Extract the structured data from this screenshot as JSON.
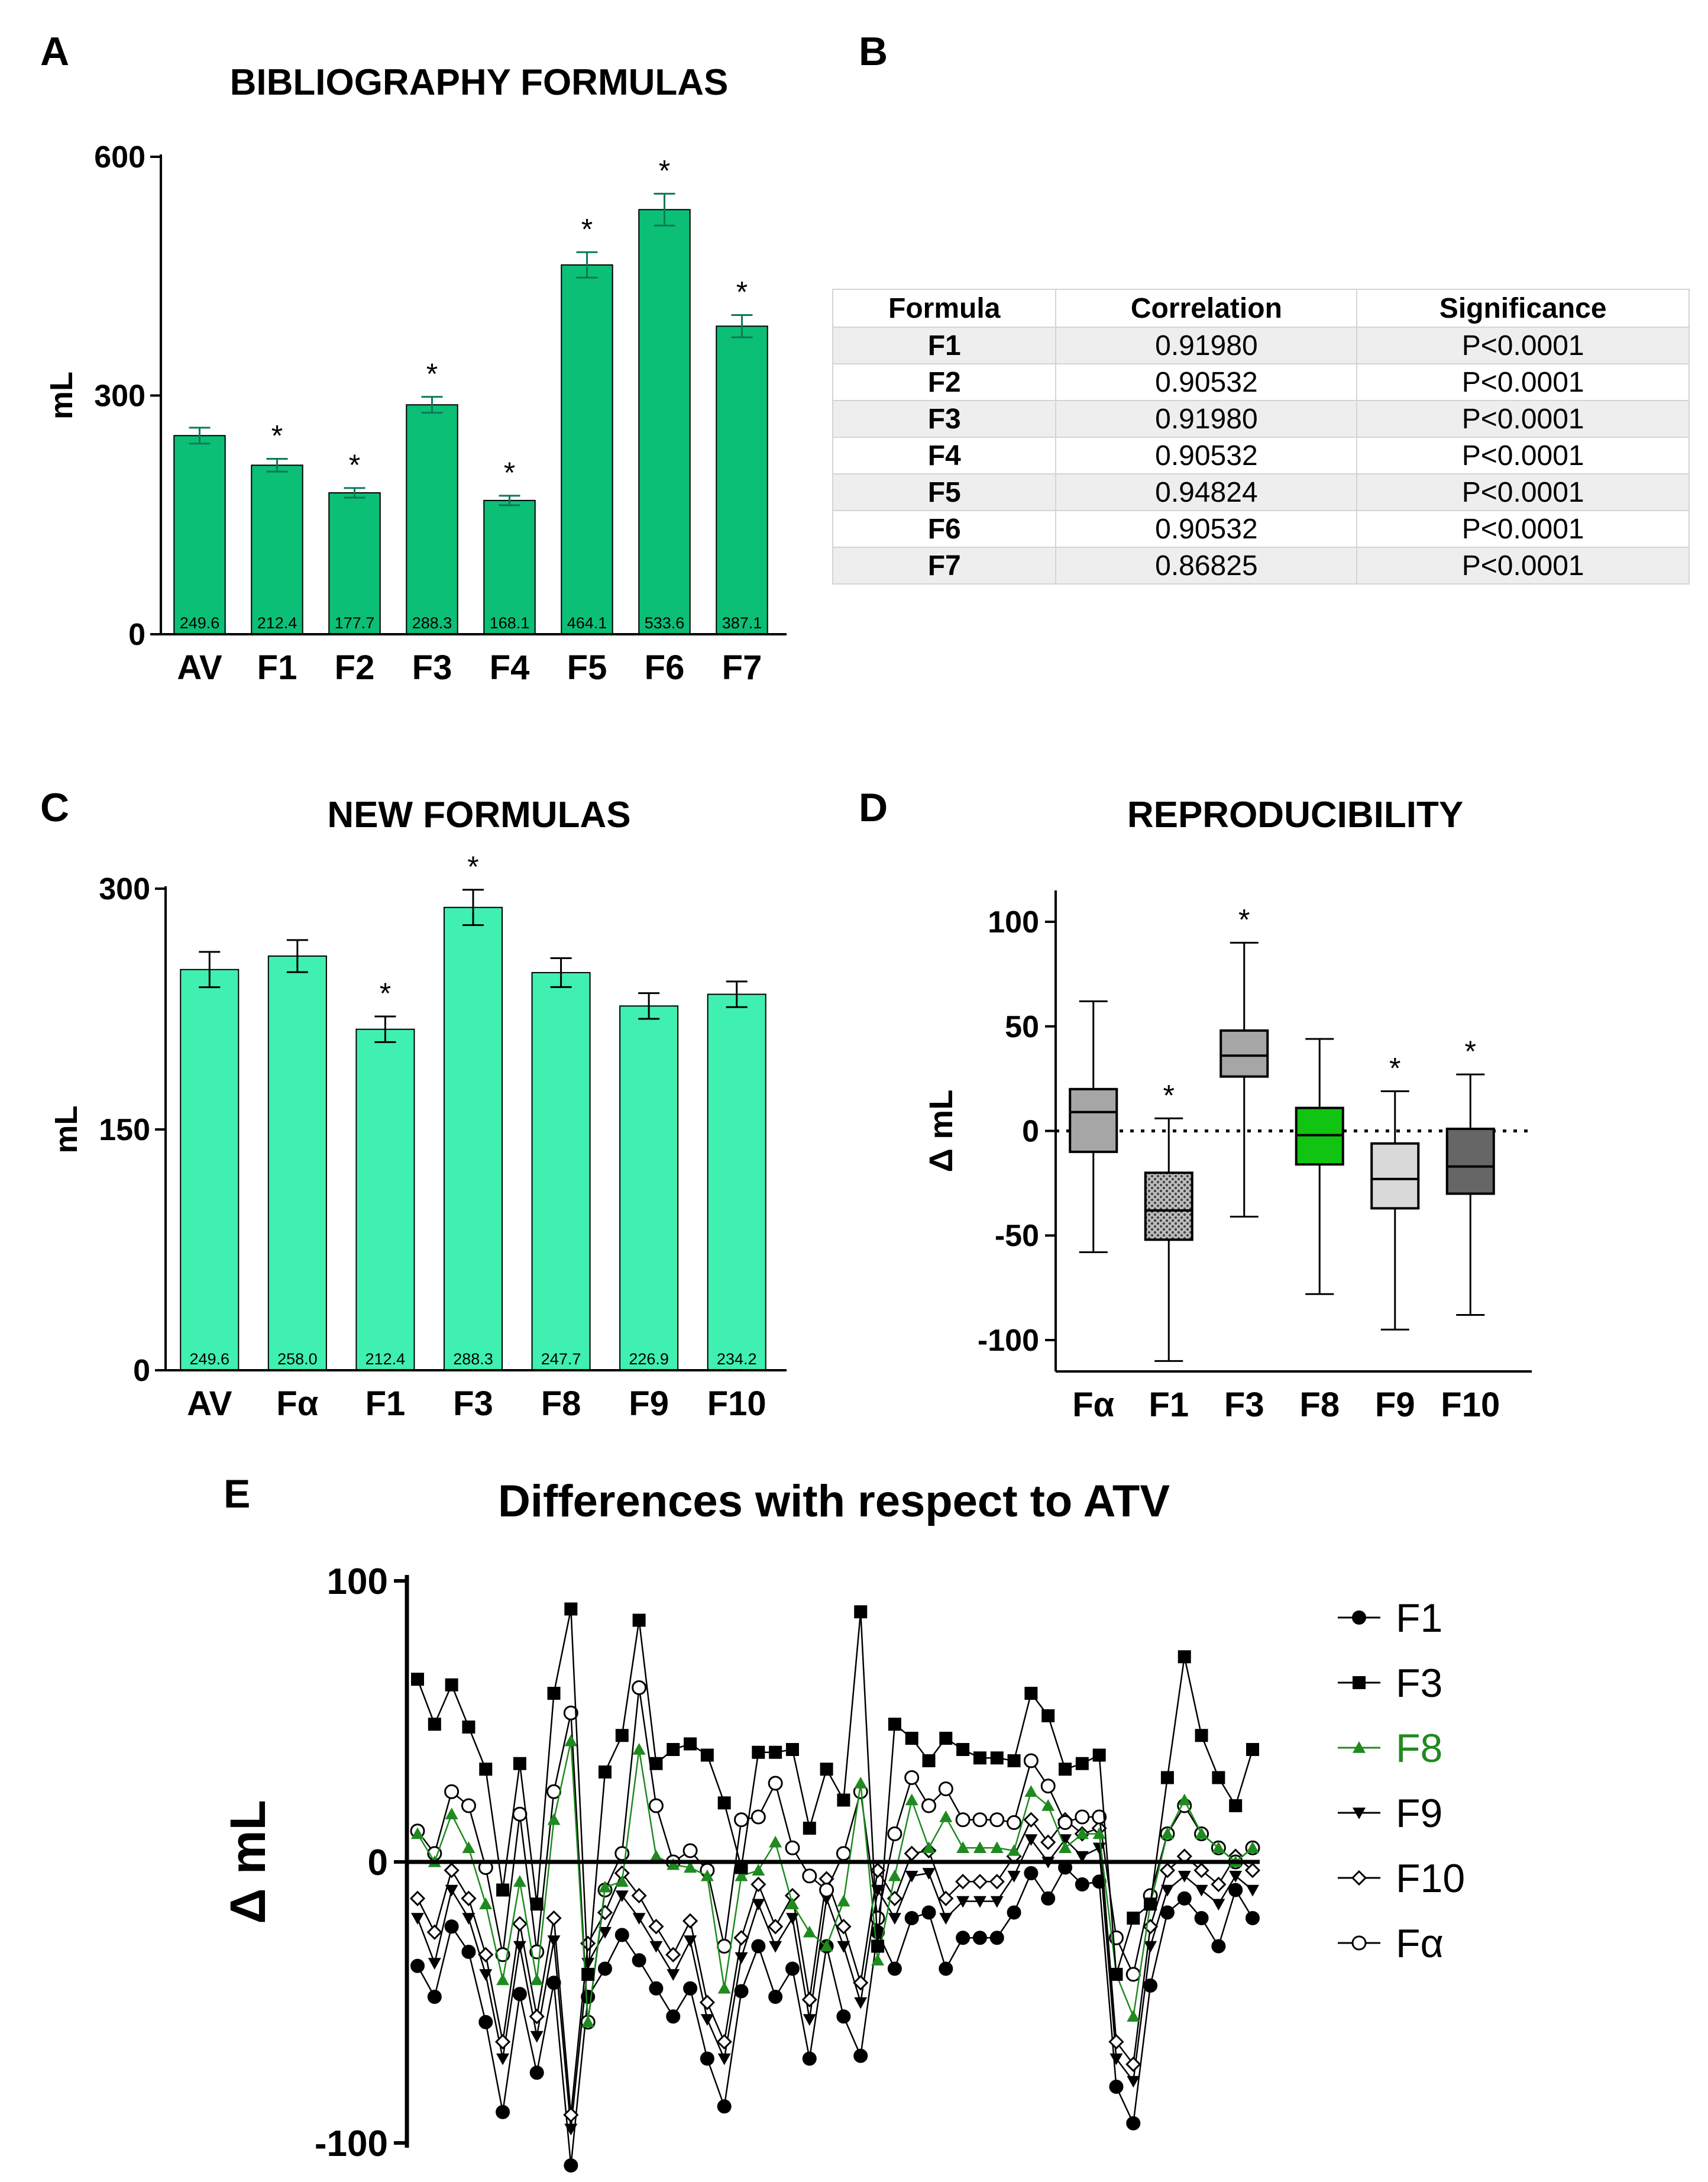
{
  "panels": {
    "A": {
      "letter": "A",
      "title": "BIBLIOGRAPHY FORMULAS"
    },
    "B": {
      "letter": "B"
    },
    "C": {
      "letter": "C",
      "title": "NEW FORMULAS"
    },
    "D": {
      "letter": "D",
      "title": "REPRODUCIBILITY"
    },
    "E": {
      "letter": "E",
      "title": "Differences with respect to ATV"
    }
  },
  "colors": {
    "bar_a": "#0cbf76",
    "bar_c": "#3ff0b0",
    "err_a": "#0a7a55",
    "f8_green": "#1f8a1f"
  },
  "correlation_table": {
    "headers": [
      "Formula",
      "Correlation",
      "Significance"
    ],
    "rows": [
      [
        "F1",
        "0.91980",
        "P<0.0001"
      ],
      [
        "F2",
        "0.90532",
        "P<0.0001"
      ],
      [
        "F3",
        "0.91980",
        "P<0.0001"
      ],
      [
        "F4",
        "0.90532",
        "P<0.0001"
      ],
      [
        "F5",
        "0.94824",
        "P<0.0001"
      ],
      [
        "F6",
        "0.90532",
        "P<0.0001"
      ],
      [
        "F7",
        "0.86825",
        "P<0.0001"
      ]
    ]
  },
  "chart_data": [
    {
      "id": "A",
      "type": "bar",
      "title": "BIBLIOGRAPHY FORMULAS",
      "ylabel": "mL",
      "xlabel": "",
      "ylim": [
        0,
        600
      ],
      "yticks": [
        0,
        300,
        600
      ],
      "categories": [
        "AV",
        "F1",
        "F2",
        "F3",
        "F4",
        "F5",
        "F6",
        "F7"
      ],
      "values": [
        249.6,
        212.4,
        177.7,
        288.3,
        168.1,
        464.1,
        533.6,
        387.1
      ],
      "value_labels": [
        "249.6",
        "212.4",
        "177.7",
        "288.3",
        "168.1",
        "464.1",
        "533.6",
        "387.1"
      ],
      "errors": [
        10,
        8,
        6,
        10,
        6,
        16,
        20,
        14
      ],
      "significant": [
        false,
        true,
        true,
        true,
        true,
        true,
        true,
        true
      ],
      "significance_marker": "*"
    },
    {
      "id": "C",
      "type": "bar",
      "title": "NEW FORMULAS",
      "ylabel": "mL",
      "xlabel": "",
      "ylim": [
        0,
        300
      ],
      "yticks": [
        0,
        150,
        300
      ],
      "categories": [
        "AV",
        "Fα",
        "F1",
        "F3",
        "F8",
        "F9",
        "F10"
      ],
      "values": [
        249.6,
        258.0,
        212.4,
        288.3,
        247.7,
        226.9,
        234.2
      ],
      "value_labels": [
        "249.6",
        "258.0",
        "212.4",
        "288.3",
        "247.7",
        "226.9",
        "234.2"
      ],
      "errors": [
        11,
        10,
        8,
        11,
        9,
        8,
        8
      ],
      "significant": [
        false,
        false,
        true,
        true,
        false,
        false,
        false
      ],
      "significance_marker": "*"
    },
    {
      "id": "D",
      "type": "box",
      "title": "REPRODUCIBILITY",
      "ylabel": "Δ mL",
      "ylim": [
        -115,
        115
      ],
      "yticks": [
        -100,
        -50,
        0,
        50,
        100
      ],
      "reference_line": 0,
      "categories": [
        "Fα",
        "F1",
        "F3",
        "F8",
        "F9",
        "F10"
      ],
      "boxes": [
        {
          "min": -58,
          "q1": -10,
          "median": 9,
          "q3": 20,
          "max": 62,
          "fill": "#a6a6a6",
          "significant": false
        },
        {
          "min": -110,
          "q1": -52,
          "median": -38,
          "q3": -20,
          "max": 6,
          "fill": "#b4b4b4",
          "pattern": "dots",
          "significant": true
        },
        {
          "min": -41,
          "q1": 26,
          "median": 36,
          "q3": 48,
          "max": 90,
          "fill": "#a6a6a6",
          "significant": true
        },
        {
          "min": -78,
          "q1": -16,
          "median": -2,
          "q3": 11,
          "max": 44,
          "fill": "#11c411",
          "significant": false
        },
        {
          "min": -95,
          "q1": -37,
          "median": -23,
          "q3": -6,
          "max": 19,
          "fill": "#d9d9d9",
          "significant": true
        },
        {
          "min": -88,
          "q1": -30,
          "median": -17,
          "q3": 1,
          "max": 27,
          "fill": "#666666",
          "significant": true
        }
      ],
      "significance_marker": "*"
    },
    {
      "id": "E",
      "type": "line",
      "title": "Differences with respect to ATV",
      "ylabel": "Δ mL",
      "ylim": [
        -100,
        100
      ],
      "yticks": [
        -100,
        0,
        100
      ],
      "x": [
        1,
        2,
        3,
        4,
        5,
        6,
        7,
        8,
        9,
        10,
        11,
        12,
        13,
        14,
        15,
        16,
        17,
        18,
        19,
        20,
        21,
        22,
        23,
        24,
        25,
        26,
        27,
        28,
        29,
        30,
        31,
        32,
        33,
        34,
        35,
        36,
        37,
        38,
        39,
        40,
        41,
        42,
        43,
        44,
        45,
        46,
        47,
        48,
        49,
        50
      ],
      "series": [
        {
          "name": "F1",
          "marker": "filled-circle",
          "color": "#000000",
          "values": [
            -37,
            -48,
            -23,
            -32,
            -57,
            -89,
            -47,
            -75,
            -43,
            -108,
            -48,
            -38,
            -26,
            -35,
            -45,
            -55,
            -45,
            -70,
            -87,
            -46,
            -30,
            -48,
            -38,
            -70,
            -30,
            -55,
            -69,
            -25,
            -38,
            -20,
            -18,
            -38,
            -27,
            -27,
            -27,
            -18,
            -4,
            -13,
            -2,
            -8,
            -7,
            -80,
            -93,
            -44,
            -18,
            -13,
            -20,
            -30,
            -10,
            -20
          ]
        },
        {
          "name": "F3",
          "marker": "filled-square",
          "color": "#000000",
          "values": [
            65,
            49,
            63,
            48,
            33,
            -10,
            35,
            -15,
            60,
            90,
            -40,
            32,
            45,
            86,
            35,
            40,
            42,
            38,
            21,
            -2,
            39,
            39,
            40,
            12,
            33,
            22,
            89,
            -30,
            49,
            44,
            36,
            44,
            40,
            37,
            37,
            36,
            60,
            52,
            33,
            35,
            38,
            -40,
            -20,
            -15,
            30,
            73,
            45,
            30,
            20,
            40
          ]
        },
        {
          "name": "F8",
          "marker": "filled-triangle",
          "color": "#1f8a1f",
          "values": [
            10,
            0,
            17,
            5,
            -15,
            -42,
            -7,
            -42,
            15,
            43,
            -57,
            -9,
            -7,
            40,
            2,
            -1,
            -2,
            -5,
            -45,
            -5,
            -3,
            7,
            -15,
            -25,
            -30,
            -14,
            28,
            -35,
            -5,
            22,
            5,
            16,
            5,
            5,
            5,
            4,
            25,
            20,
            5,
            10,
            10,
            -40,
            -55,
            -15,
            10,
            22,
            10,
            5,
            0,
            5
          ]
        },
        {
          "name": "F9",
          "marker": "filled-triangle-down",
          "color": "#000000",
          "values": [
            -20,
            -36,
            -10,
            -20,
            -40,
            -70,
            -30,
            -62,
            -28,
            -95,
            -36,
            -25,
            -12,
            -20,
            -30,
            -40,
            -28,
            -56,
            -70,
            -34,
            -15,
            -30,
            -20,
            -56,
            -13,
            -30,
            -50,
            -10,
            -20,
            -5,
            -4,
            -20,
            -14,
            -14,
            -14,
            -5,
            8,
            0,
            8,
            2,
            5,
            -70,
            -78,
            -30,
            -10,
            -5,
            -10,
            -15,
            -5,
            -10
          ]
        },
        {
          "name": "F10",
          "marker": "open-diamond",
          "color": "#000000",
          "values": [
            -13,
            -25,
            -3,
            -13,
            -33,
            -64,
            -22,
            -55,
            -20,
            -90,
            -29,
            -18,
            -4,
            -12,
            -23,
            -33,
            -21,
            -50,
            -64,
            -27,
            -8,
            -23,
            -12,
            -49,
            -6,
            -23,
            -43,
            -3,
            -13,
            3,
            4,
            -13,
            -7,
            -7,
            -7,
            2,
            15,
            7,
            15,
            10,
            12,
            -64,
            -72,
            -23,
            -3,
            2,
            -3,
            -8,
            2,
            -3
          ]
        },
        {
          "name": "Fα",
          "marker": "open-circle",
          "color": "#000000",
          "values": [
            11,
            3,
            25,
            20,
            -2,
            -33,
            17,
            -32,
            25,
            53,
            -57,
            -10,
            3,
            62,
            20,
            0,
            4,
            -3,
            -30,
            15,
            16,
            28,
            5,
            -5,
            -10,
            3,
            25,
            -20,
            10,
            30,
            20,
            26,
            15,
            15,
            15,
            14,
            36,
            27,
            14,
            16,
            16,
            -27,
            -40,
            -12,
            10,
            20,
            10,
            5,
            0,
            5
          ]
        }
      ]
    }
  ]
}
